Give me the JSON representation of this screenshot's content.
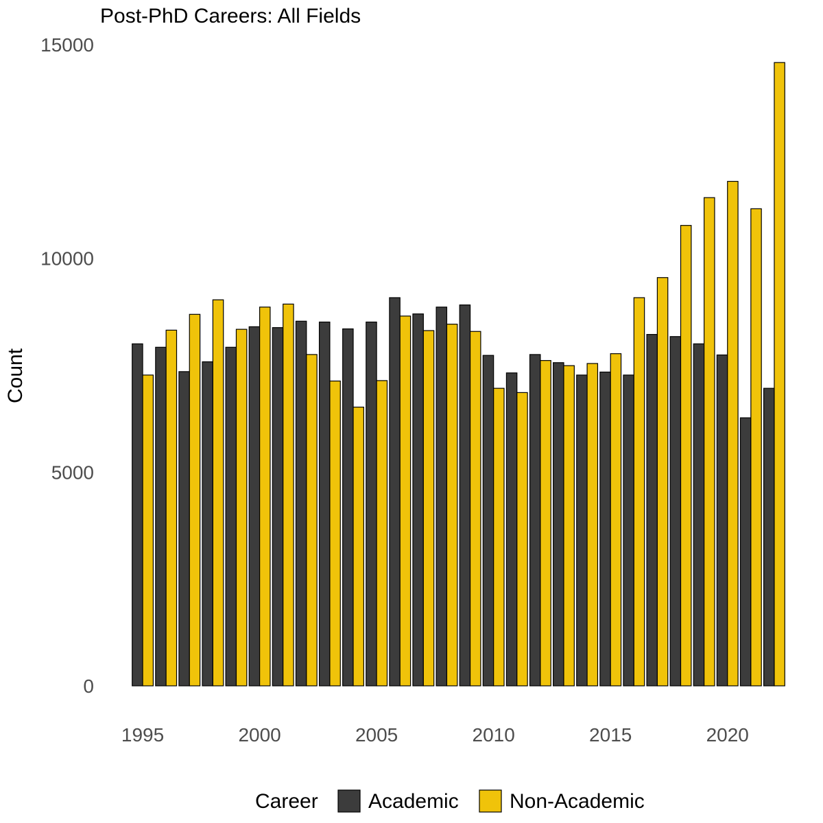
{
  "chart_data": {
    "type": "bar",
    "title": "Post-PhD Careers: All Fields",
    "xlabel": "",
    "ylabel": "Count",
    "ylim": [
      0,
      15000
    ],
    "yticks": [
      0,
      5000,
      10000,
      15000
    ],
    "xticks": [
      1995,
      2000,
      2005,
      2010,
      2015,
      2020
    ],
    "grid": false,
    "legend": {
      "title": "Career",
      "position": "bottom"
    },
    "categories": [
      1995,
      1996,
      1997,
      1998,
      1999,
      2000,
      2001,
      2002,
      2003,
      2004,
      2005,
      2006,
      2007,
      2008,
      2009,
      2010,
      2011,
      2012,
      2013,
      2014,
      2015,
      2016,
      2017,
      2018,
      2019,
      2020,
      2021,
      2022
    ],
    "series": [
      {
        "name": "Academic",
        "color": "#3c3c3c",
        "values": [
          8000,
          7920,
          7350,
          7580,
          7920,
          8400,
          8380,
          8530,
          8510,
          8350,
          8510,
          9080,
          8700,
          8860,
          8910,
          7730,
          7320,
          7750,
          7560,
          7270,
          7340,
          7270,
          8220,
          8170,
          8000,
          7740,
          6270,
          6960
        ]
      },
      {
        "name": "Non-Academic",
        "color": "#f0c30a",
        "values": [
          7270,
          8320,
          8690,
          9030,
          8340,
          8860,
          8930,
          7750,
          7130,
          6520,
          7140,
          8650,
          8310,
          8460,
          8290,
          6960,
          6860,
          7610,
          7490,
          7540,
          7770,
          9080,
          9550,
          10770,
          11420,
          11800,
          11160,
          14580
        ]
      }
    ]
  }
}
